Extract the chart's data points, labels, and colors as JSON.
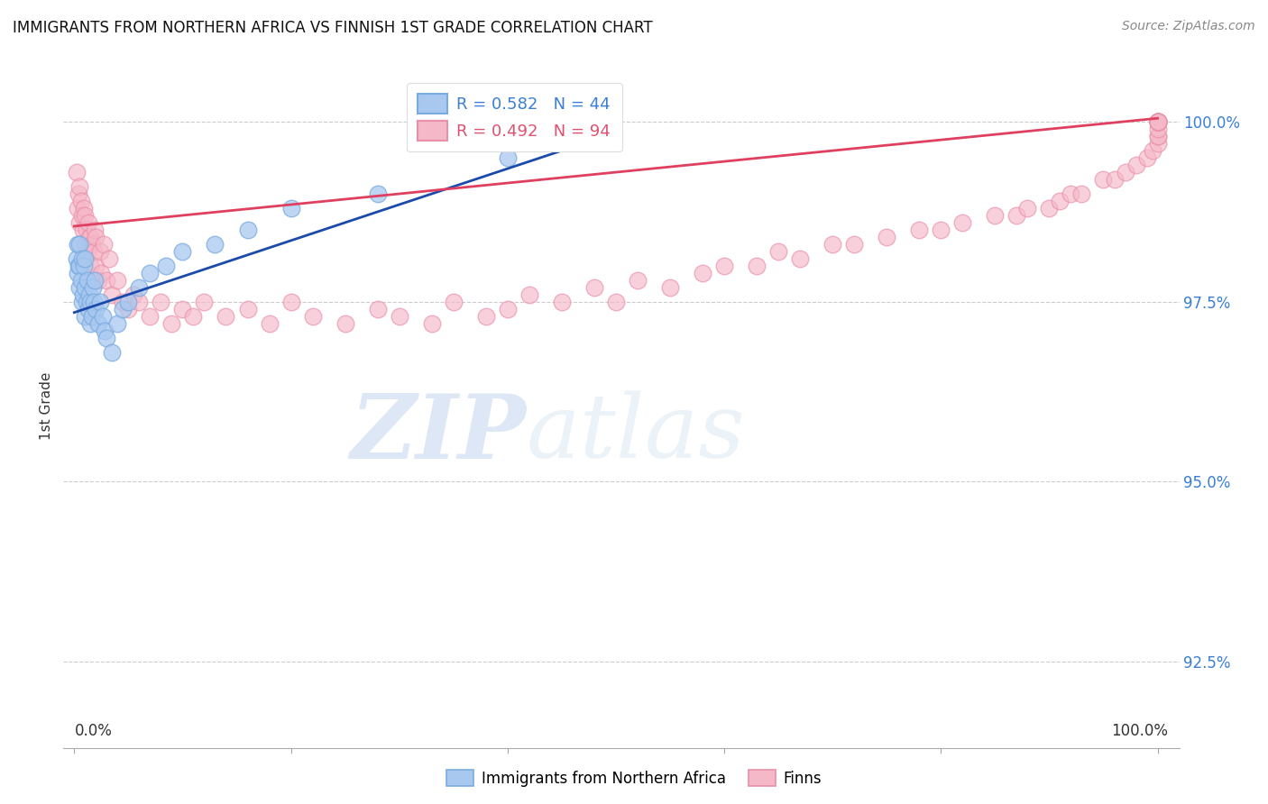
{
  "title": "IMMIGRANTS FROM NORTHERN AFRICA VS FINNISH 1ST GRADE CORRELATION CHART",
  "source": "Source: ZipAtlas.com",
  "ylabel": "1st Grade",
  "yticks": [
    100.0,
    97.5,
    95.0,
    92.5
  ],
  "ytick_labels": [
    "100.0%",
    "97.5%",
    "95.0%",
    "92.5%"
  ],
  "y_min": 91.3,
  "y_max": 100.8,
  "x_min": -1.0,
  "x_max": 102.0,
  "blue_color": "#a8c8f0",
  "pink_color": "#f5b8c8",
  "blue_edge_color": "#7aabdf",
  "pink_edge_color": "#e890a8",
  "blue_line_color": "#1a4aaa",
  "pink_line_color": "#e04060",
  "legend_blue_r": "0.582",
  "legend_blue_n": "44",
  "legend_pink_r": "0.492",
  "legend_pink_n": "94",
  "legend_blue_color": "#3a7fd4",
  "legend_pink_color": "#e05070",
  "watermark_zip": "ZIP",
  "watermark_atlas": "atlas",
  "blue_scatter_x": [
    0.2,
    0.3,
    0.3,
    0.4,
    0.5,
    0.5,
    0.5,
    0.6,
    0.7,
    0.7,
    0.8,
    0.9,
    1.0,
    1.0,
    1.0,
    1.1,
    1.2,
    1.3,
    1.4,
    1.5,
    1.5,
    1.6,
    1.7,
    1.8,
    1.9,
    2.0,
    2.2,
    2.4,
    2.6,
    2.8,
    3.0,
    3.5,
    4.0,
    4.5,
    5.0,
    6.0,
    7.0,
    8.5,
    10.0,
    13.0,
    16.0,
    20.0,
    28.0,
    40.0
  ],
  "blue_scatter_y": [
    98.1,
    97.9,
    98.3,
    98.0,
    97.7,
    98.0,
    98.3,
    97.8,
    97.5,
    98.1,
    97.6,
    98.0,
    97.3,
    97.7,
    98.1,
    97.5,
    97.8,
    97.4,
    97.6,
    97.2,
    97.5,
    97.3,
    97.7,
    97.5,
    97.8,
    97.4,
    97.2,
    97.5,
    97.3,
    97.1,
    97.0,
    96.8,
    97.2,
    97.4,
    97.5,
    97.7,
    97.9,
    98.0,
    98.2,
    98.3,
    98.5,
    98.8,
    99.0,
    99.5
  ],
  "pink_scatter_x": [
    0.2,
    0.3,
    0.4,
    0.5,
    0.5,
    0.6,
    0.7,
    0.8,
    0.9,
    1.0,
    1.0,
    1.1,
    1.2,
    1.3,
    1.4,
    1.5,
    1.5,
    1.6,
    1.8,
    1.9,
    2.0,
    2.0,
    2.2,
    2.4,
    2.5,
    2.7,
    3.0,
    3.2,
    3.5,
    4.0,
    4.5,
    5.0,
    5.5,
    6.0,
    7.0,
    8.0,
    9.0,
    10.0,
    11.0,
    12.0,
    14.0,
    16.0,
    18.0,
    20.0,
    22.0,
    25.0,
    28.0,
    30.0,
    33.0,
    35.0,
    38.0,
    40.0,
    42.0,
    45.0,
    48.0,
    50.0,
    52.0,
    55.0,
    58.0,
    60.0,
    63.0,
    65.0,
    67.0,
    70.0,
    72.0,
    75.0,
    78.0,
    80.0,
    82.0,
    85.0,
    87.0,
    88.0,
    90.0,
    91.0,
    92.0,
    93.0,
    95.0,
    96.0,
    97.0,
    98.0,
    99.0,
    99.5,
    100.0,
    100.0,
    100.0,
    100.0,
    100.0,
    100.0,
    100.0,
    100.0,
    100.0,
    100.0,
    100.0,
    100.0
  ],
  "pink_scatter_y": [
    99.3,
    98.8,
    99.0,
    99.1,
    98.6,
    98.9,
    98.7,
    98.5,
    98.8,
    98.3,
    98.7,
    98.5,
    98.2,
    98.6,
    98.4,
    98.0,
    98.4,
    98.3,
    98.2,
    98.5,
    98.0,
    98.4,
    97.8,
    98.2,
    97.9,
    98.3,
    97.8,
    98.1,
    97.6,
    97.8,
    97.5,
    97.4,
    97.6,
    97.5,
    97.3,
    97.5,
    97.2,
    97.4,
    97.3,
    97.5,
    97.3,
    97.4,
    97.2,
    97.5,
    97.3,
    97.2,
    97.4,
    97.3,
    97.2,
    97.5,
    97.3,
    97.4,
    97.6,
    97.5,
    97.7,
    97.5,
    97.8,
    97.7,
    97.9,
    98.0,
    98.0,
    98.2,
    98.1,
    98.3,
    98.3,
    98.4,
    98.5,
    98.5,
    98.6,
    98.7,
    98.7,
    98.8,
    98.8,
    98.9,
    99.0,
    99.0,
    99.2,
    99.2,
    99.3,
    99.4,
    99.5,
    99.6,
    99.7,
    99.8,
    99.8,
    99.9,
    100.0,
    100.0,
    100.0,
    100.0,
    100.0,
    100.0,
    100.0,
    100.0
  ],
  "blue_line_x0": 0.0,
  "blue_line_y0": 97.35,
  "blue_line_x1": 45.0,
  "blue_line_y1": 99.6,
  "pink_line_x0": 0.0,
  "pink_line_y0": 98.55,
  "pink_line_x1": 100.0,
  "pink_line_y1": 100.05
}
